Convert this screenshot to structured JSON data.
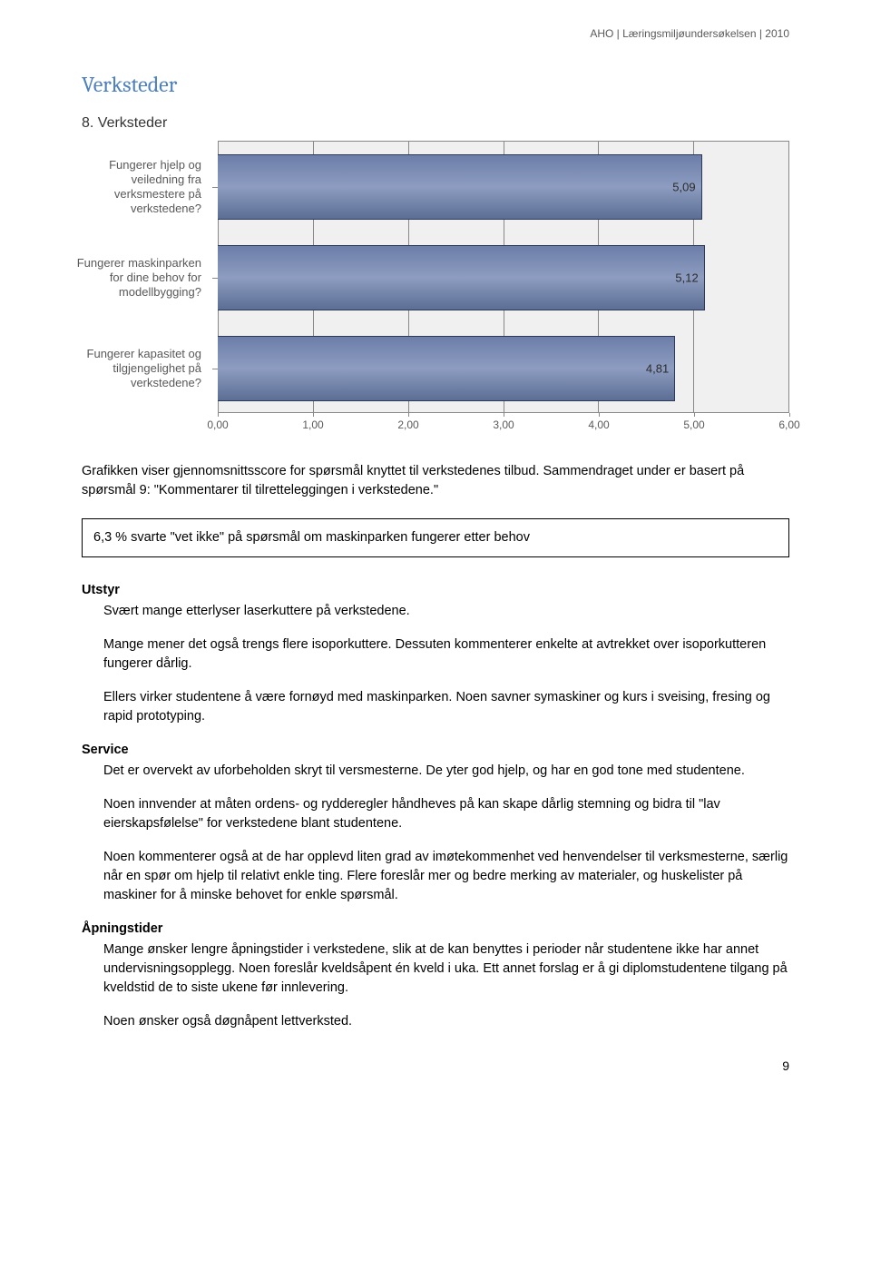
{
  "header": "AHO | Læringsmiljøundersøkelsen | 2010",
  "title": "Verksteder",
  "chart": {
    "title": "8. Verksteder",
    "type": "bar-horizontal",
    "xlim": [
      0,
      6
    ],
    "xtick_step": 1,
    "xtick_labels": [
      "0,00",
      "1,00",
      "2,00",
      "3,00",
      "4,00",
      "5,00",
      "6,00"
    ],
    "plot_bg": "#f0f0f0",
    "grid_color": "#888888",
    "bar_fill_top": "#6c7ea9",
    "bar_fill_mid": "#8d9cc0",
    "bar_fill_bot": "#5c6e95",
    "bar_border": "#2c3a56",
    "label_color": "#595959",
    "bars": [
      {
        "label": "Fungerer hjelp og veiledning fra verksmestere på verkstedene?",
        "value": 5.09,
        "value_label": "5,09"
      },
      {
        "label": "Fungerer maskinparken for dine behov for modellbygging?",
        "value": 5.12,
        "value_label": "5,12"
      },
      {
        "label": "Fungerer kapasitet og tilgjengelighet på verkstedene?",
        "value": 4.81,
        "value_label": "4,81"
      }
    ]
  },
  "intro": "Grafikken viser gjennomsnittsscore for spørsmål knyttet til verkstedenes tilbud. Sammendraget under er basert på spørsmål 9: \"Kommentarer til tilretteleggingen i verkstedene.\"",
  "callout": "6,3 % svarte \"vet ikke\" på spørsmål om maskinparken fungerer etter behov",
  "sections": {
    "utstyr_head": "Utstyr",
    "utstyr_p1": "Svært mange etterlyser laserkuttere på verkstedene.",
    "utstyr_p2": "Mange mener det også trengs flere isoporkuttere. Dessuten kommenterer enkelte at avtrekket over isoporkutteren fungerer dårlig.",
    "utstyr_p3": "Ellers virker studentene å være fornøyd med maskinparken. Noen savner symaskiner og kurs i sveising, fresing og rapid prototyping.",
    "service_head": "Service",
    "service_p1": "Det er overvekt av uforbeholden skryt til versmesterne. De yter god hjelp, og har en god tone med studentene.",
    "service_p2": "Noen innvender at måten ordens- og rydderegler håndheves på kan skape dårlig stemning og bidra til \"lav eierskapsfølelse\" for verkstedene blant studentene.",
    "service_p3": "Noen kommenterer også at de har opplevd liten grad av imøtekommenhet ved henvendelser til verksmesterne, særlig når en spør om hjelp til relativt enkle ting. Flere foreslår mer og bedre merking av materialer, og huskelister på maskiner for å minske behovet for enkle spørsmål.",
    "apning_head": "Åpningstider",
    "apning_p1": "Mange ønsker lengre åpningstider i verkstedene, slik at de kan benyttes i perioder når studentene ikke har annet undervisningsopplegg. Noen foreslår kveldsåpent én kveld i uka. Ett annet forslag er å gi diplomstudentene tilgang på kveldstid de to siste ukene før innlevering.",
    "apning_p2": "Noen ønsker også døgnåpent lettverksted."
  },
  "page_number": "9"
}
